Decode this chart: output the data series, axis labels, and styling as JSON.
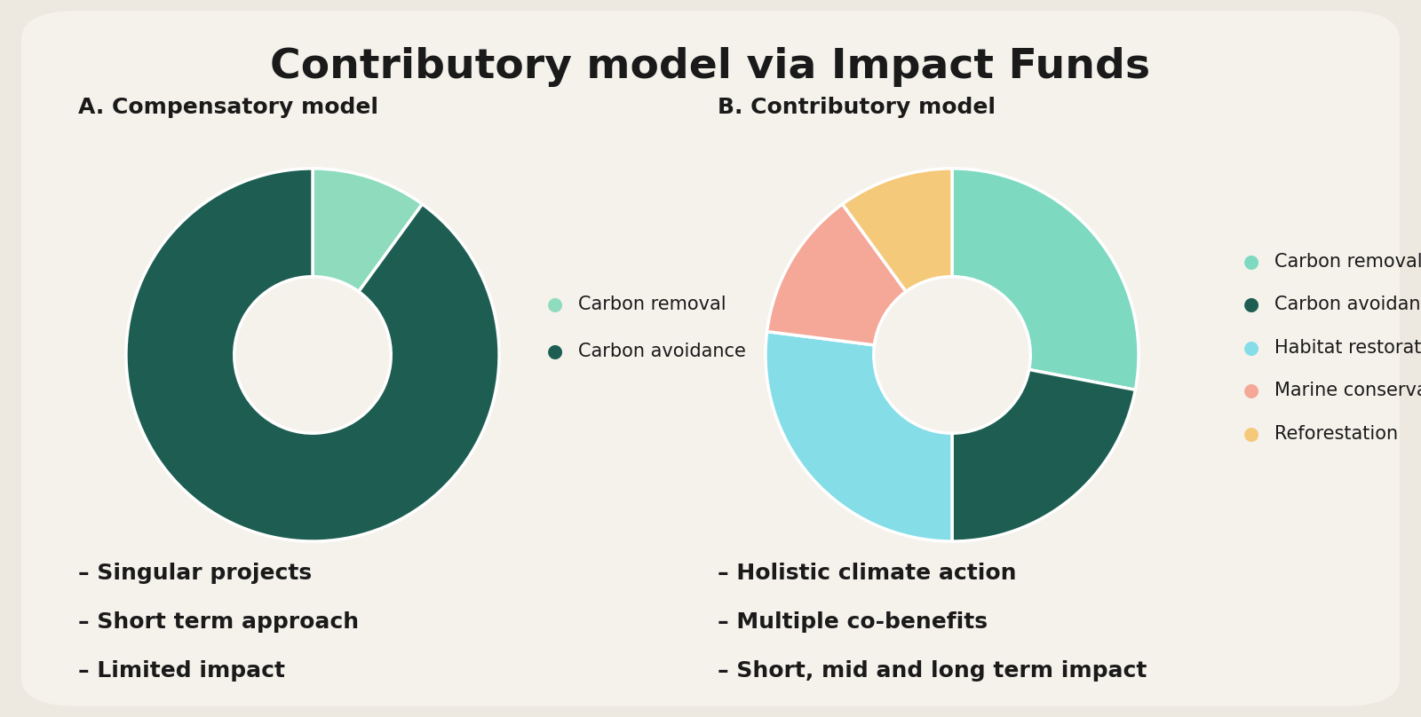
{
  "title": "Contributory model via Impact Funds",
  "background_color": "#EEE9E0",
  "card_color": "#F5F2EC",
  "title_fontsize": 34,
  "title_color": "#1a1a1a",
  "panel_a_label": "A. Compensatory model",
  "panel_a_values": [
    10,
    90
  ],
  "panel_a_colors": [
    "#8EDBBE",
    "#1E5E52"
  ],
  "panel_a_legend": [
    "Carbon removal",
    "Carbon avoidance"
  ],
  "panel_a_bullets": [
    "– Singular projects",
    "– Short term approach",
    "– Limited impact"
  ],
  "panel_a_startangle": 90,
  "panel_b_label": "B. Contributory model",
  "panel_b_values": [
    28,
    22,
    27,
    13,
    10
  ],
  "panel_b_colors": [
    "#7DD9C0",
    "#1E5E52",
    "#85DDE8",
    "#F5A898",
    "#F5C97A"
  ],
  "panel_b_legend": [
    "Carbon removal",
    "Carbon avoidance",
    "Habitat restoration",
    "Marine conservation",
    "Reforestation"
  ],
  "panel_b_bullets": [
    "– Holistic climate action",
    "– Multiple co-benefits",
    "– Short, mid and long term impact"
  ],
  "panel_b_startangle": 90,
  "subtitle_fontsize": 18,
  "legend_fontsize": 15,
  "bullet_fontsize": 18,
  "label_color": "#1a1a1a",
  "legend_color": "#1a1a1a",
  "bullet_color": "#1a1a1a"
}
